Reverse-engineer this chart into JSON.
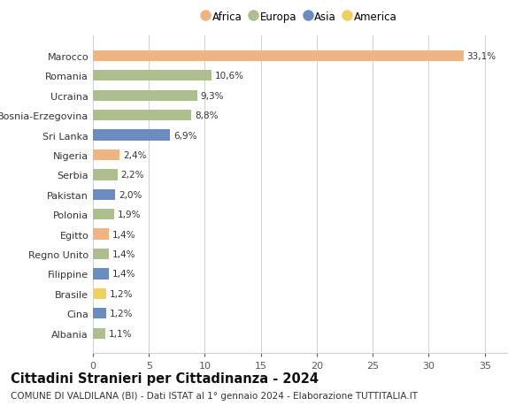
{
  "countries": [
    "Albania",
    "Cina",
    "Brasile",
    "Filippine",
    "Regno Unito",
    "Egitto",
    "Polonia",
    "Pakistan",
    "Serbia",
    "Nigeria",
    "Sri Lanka",
    "Bosnia-Erzegovina",
    "Ucraina",
    "Romania",
    "Marocco"
  ],
  "values": [
    1.1,
    1.2,
    1.2,
    1.4,
    1.4,
    1.4,
    1.9,
    2.0,
    2.2,
    2.4,
    6.9,
    8.8,
    9.3,
    10.6,
    33.1
  ],
  "labels": [
    "1,1%",
    "1,2%",
    "1,2%",
    "1,4%",
    "1,4%",
    "1,4%",
    "1,9%",
    "2,0%",
    "2,2%",
    "2,4%",
    "6,9%",
    "8,8%",
    "9,3%",
    "10,6%",
    "33,1%"
  ],
  "continents": [
    "Europa",
    "Asia",
    "America",
    "Asia",
    "Europa",
    "Africa",
    "Europa",
    "Asia",
    "Europa",
    "Africa",
    "Asia",
    "Europa",
    "Europa",
    "Europa",
    "Africa"
  ],
  "continent_colors": {
    "Africa": "#F0B482",
    "Europa": "#ADBF8E",
    "Asia": "#6B8CBE",
    "America": "#F0D060"
  },
  "legend_order": [
    "Africa",
    "Europa",
    "Asia",
    "America"
  ],
  "title": "Cittadini Stranieri per Cittadinanza - 2024",
  "subtitle": "COMUNE DI VALDILANA (BI) - Dati ISTAT al 1° gennaio 2024 - Elaborazione TUTTITALIA.IT",
  "xlim": [
    0,
    37
  ],
  "xticks": [
    0,
    5,
    10,
    15,
    20,
    25,
    30,
    35
  ],
  "bg_color": "#ffffff",
  "grid_color": "#d0d0d0",
  "bar_height": 0.55,
  "title_fontsize": 10.5,
  "subtitle_fontsize": 7.5,
  "label_fontsize": 7.5,
  "ytick_fontsize": 8,
  "xtick_fontsize": 8,
  "legend_fontsize": 8.5
}
